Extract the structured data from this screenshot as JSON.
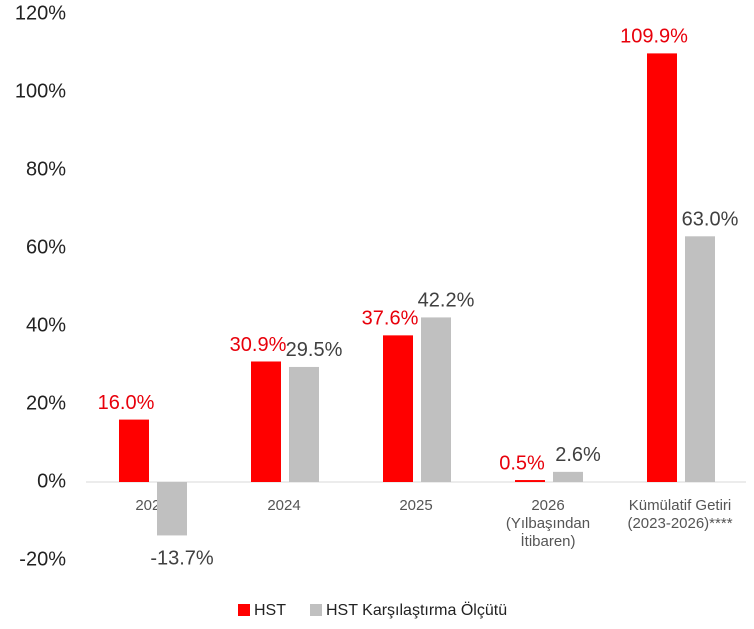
{
  "chart_data": {
    "type": "bar",
    "categories": [
      "2023",
      "2024",
      "2025",
      "2026\n(Yılbaşından\nİtibaren)",
      "Kümülatif Getiri\n(2023-2026)****"
    ],
    "series": [
      {
        "name": "HST",
        "color": "#ff0000",
        "label_color": "#e8000b",
        "values": [
          16.0,
          30.9,
          37.6,
          0.5,
          109.9
        ],
        "value_labels": [
          "16.0%",
          "30.9%",
          "37.6%",
          "0.5%",
          "109.9%"
        ]
      },
      {
        "name": "HST Karşılaştırma Ölçütü",
        "color": "#c0c0c0",
        "label_color": "#404040",
        "values": [
          -13.7,
          29.5,
          42.2,
          2.6,
          63.0
        ],
        "value_labels": [
          "-13.7%",
          "29.5%",
          "42.2%",
          "2.6%",
          "63.0%"
        ]
      }
    ],
    "ylim": [
      -20,
      120
    ],
    "yticks": [
      {
        "value": -20,
        "label": "-20%"
      },
      {
        "value": 0,
        "label": "0%"
      },
      {
        "value": 20,
        "label": "20%"
      },
      {
        "value": 40,
        "label": "40%"
      },
      {
        "value": 60,
        "label": "60%"
      },
      {
        "value": 80,
        "label": "80%"
      },
      {
        "value": 100,
        "label": "100%"
      },
      {
        "value": 120,
        "label": "120%"
      }
    ],
    "grid": false,
    "legend": "bottom"
  }
}
